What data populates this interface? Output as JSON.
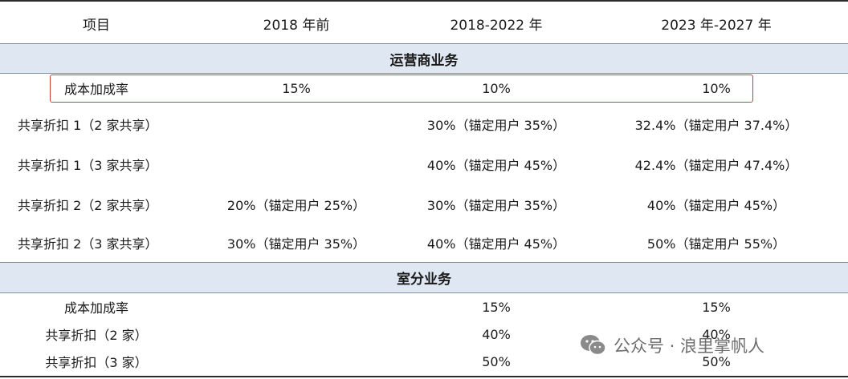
{
  "header": [
    "项目",
    "2018 年前",
    "2018-2022 年",
    "2023 年-2027 年"
  ],
  "section1": {
    "title": "运营商业务",
    "rows": [
      [
        "成本加成率",
        "15%",
        "10%",
        "10%"
      ],
      [
        "共享折扣 1（2 家共享）",
        "",
        "30%（锚定用户 35%）",
        "32.4%（锚定用户 37.4%）"
      ],
      [
        "共享折扣 1（3 家共享）",
        "",
        "40%（锚定用户 45%）",
        "42.4%（锚定用户 47.4%）"
      ],
      [
        "共享折扣 2（2 家共享）",
        "20%（锚定用户 25%）",
        "30%（锚定用户 35%）",
        "40%（锚定用户 45%）"
      ],
      [
        "共享折扣 2（3 家共享）",
        "30%（锚定用户 35%）",
        "40%（锚定用户 45%）",
        "50%（锚定用户 55%）"
      ]
    ]
  },
  "section2": {
    "title": "室分业务",
    "rows": [
      [
        "成本加成率",
        "",
        "15%",
        "15%"
      ],
      [
        "共享折扣（2 家）",
        "",
        "40%",
        "40%"
      ],
      [
        "共享折扣（3 家）",
        "",
        "50%",
        "50%"
      ]
    ]
  },
  "watermark": {
    "text": "公众号 · 浪里掌帆人",
    "icon": "wechat-icon",
    "color": "#6e6e6e"
  },
  "colors": {
    "section_bg": "#dfe7f2",
    "highlight_border": "#d23a3a"
  }
}
